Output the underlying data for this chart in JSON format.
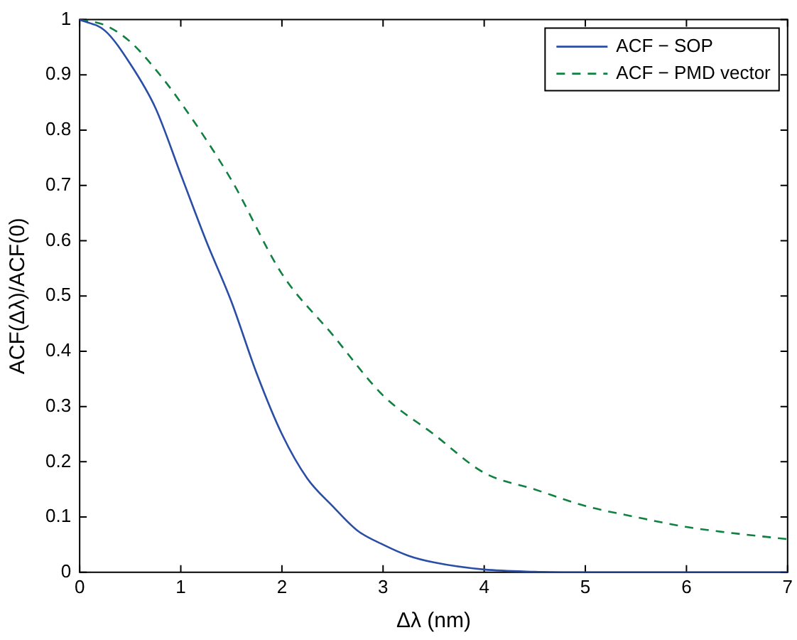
{
  "chart_data": {
    "type": "line",
    "xlabel": "Δλ (nm)",
    "ylabel": "ACF(Δλ)/ACF(0)",
    "xlim": [
      0,
      7
    ],
    "ylim": [
      0,
      1
    ],
    "xticks": [
      0,
      1,
      2,
      3,
      4,
      5,
      6,
      7
    ],
    "yticks": [
      0,
      0.1,
      0.2,
      0.3,
      0.4,
      0.5,
      0.6,
      0.7,
      0.8,
      0.9,
      1
    ],
    "grid": false,
    "legend": "top right",
    "marker": "none",
    "series": [
      {
        "name": "ACF − SOP",
        "color": "#2a4ea6",
        "line_style": "solid",
        "x": [
          0,
          0.25,
          0.5,
          0.75,
          1,
          1.25,
          1.5,
          1.75,
          2,
          2.25,
          2.5,
          2.75,
          3,
          3.25,
          3.5,
          4,
          4.5,
          5,
          6,
          7
        ],
        "values": [
          1,
          0.98,
          0.92,
          0.84,
          0.72,
          0.6,
          0.49,
          0.36,
          0.25,
          0.17,
          0.12,
          0.075,
          0.05,
          0.03,
          0.018,
          0.005,
          0.001,
          0,
          0,
          0
        ]
      },
      {
        "name": "ACF − PMD vector",
        "color": "#118040",
        "line_style": "dashed",
        "x": [
          0,
          0.25,
          0.5,
          0.75,
          1,
          1.5,
          2,
          2.5,
          3,
          3.5,
          4,
          4.5,
          5,
          5.5,
          6,
          6.5,
          7
        ],
        "values": [
          1,
          0.99,
          0.96,
          0.91,
          0.85,
          0.71,
          0.54,
          0.43,
          0.32,
          0.25,
          0.18,
          0.15,
          0.12,
          0.1,
          0.082,
          0.07,
          0.06
        ]
      }
    ]
  }
}
